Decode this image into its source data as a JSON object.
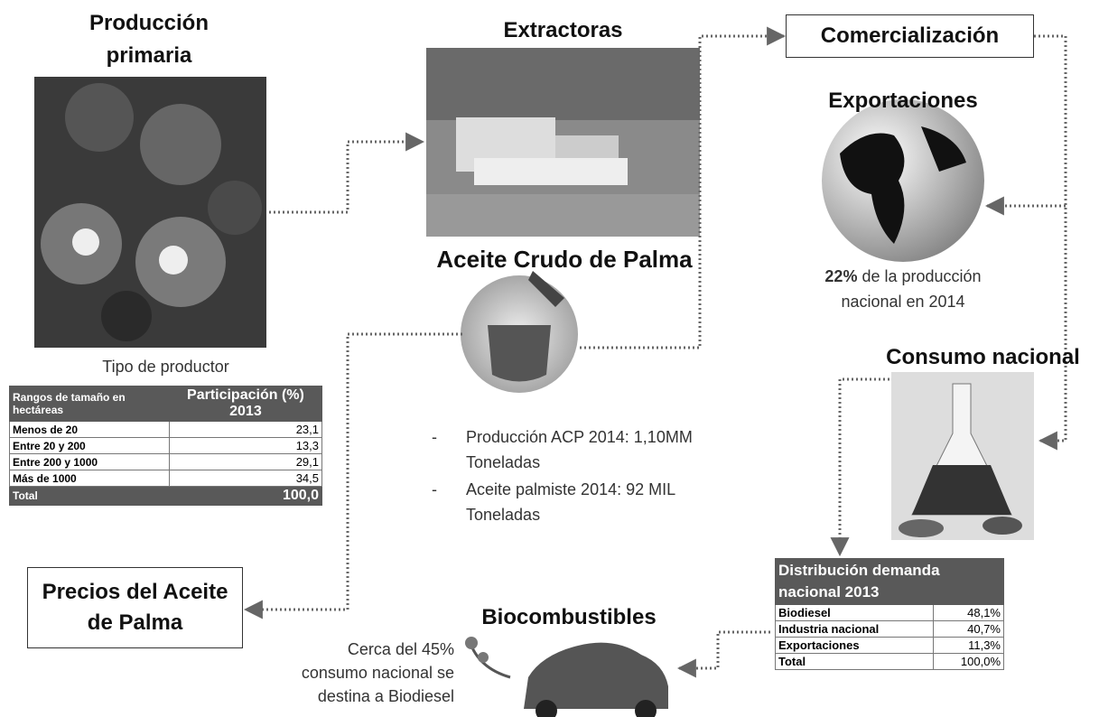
{
  "primary": {
    "title": "Producción primaria",
    "caption": "Tipo de productor"
  },
  "producers_table": {
    "header": [
      "Rangos de tamaño en hectáreas",
      "Participación (%) 2013"
    ],
    "rows": [
      [
        "Menos de 20",
        "23,1"
      ],
      [
        "Entre 20 y 200",
        "13,3"
      ],
      [
        "Entre 200 y 1000",
        "29,1"
      ],
      [
        "Más de 1000",
        "34,5"
      ]
    ],
    "total": [
      "Total",
      "100,0"
    ]
  },
  "extractors": {
    "title": "Extractoras"
  },
  "crude_oil": {
    "title": "Aceite Crudo de Palma",
    "bullets": [
      "Producción ACP 2014: 1,10MM Toneladas",
      "Aceite palmiste 2014: 92 MIL Toneladas"
    ]
  },
  "commercialization": {
    "title": "Comercialización"
  },
  "exports": {
    "title": "Exportaciones",
    "highlight": "22%",
    "text": "de la producción nacional en 2014"
  },
  "national_consumption": {
    "title": "Consumo nacional"
  },
  "demand_table": {
    "title": "Distribución demanda nacional 2013",
    "rows": [
      [
        "Biodiesel",
        "48,1%"
      ],
      [
        "Industria nacional",
        "40,7%"
      ],
      [
        "Exportaciones",
        "11,3%"
      ]
    ],
    "total": [
      "Total",
      "100,0%"
    ]
  },
  "biofuels": {
    "title": "Biocombustibles",
    "note": "Cerca del 45% consumo nacional se destina a Biodiesel"
  },
  "prices": {
    "title": "Precios del Aceite de Palma"
  }
}
